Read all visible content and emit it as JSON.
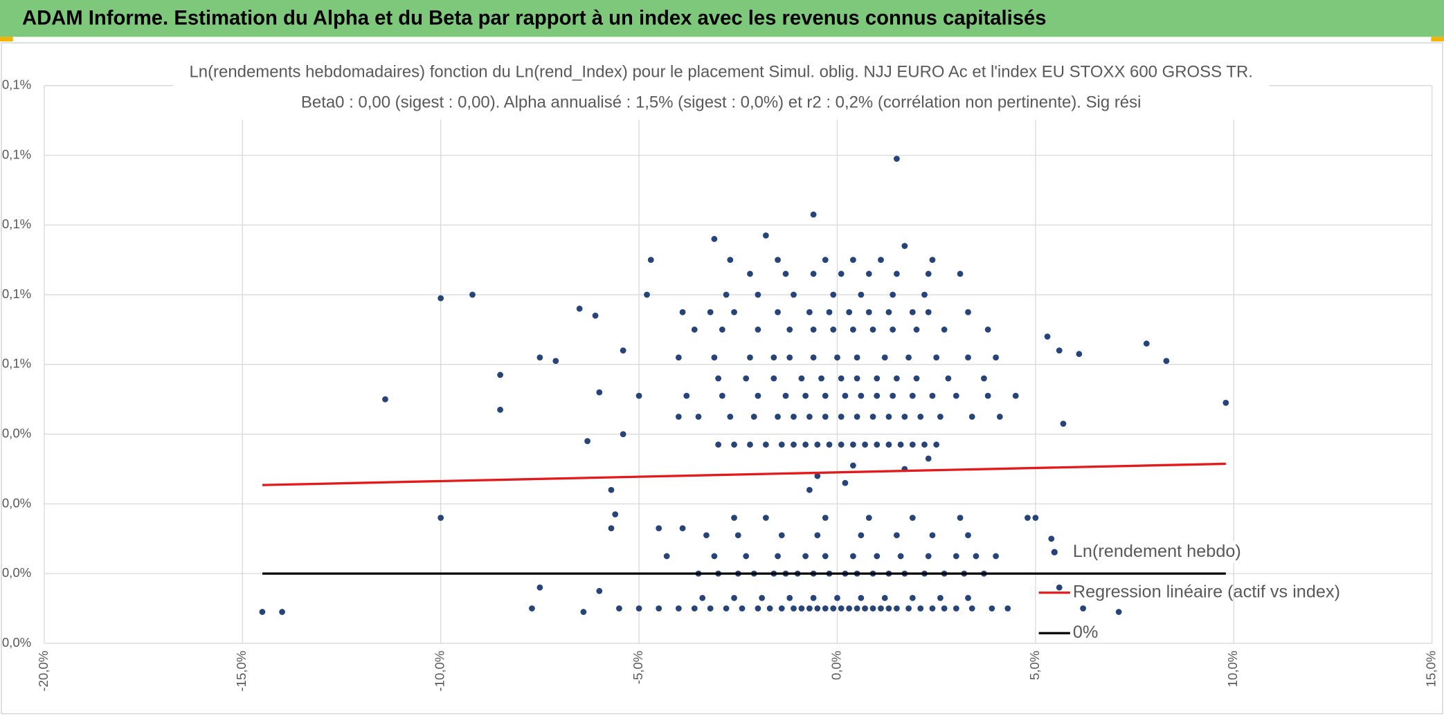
{
  "header": {
    "title": "ADAM Informe. Estimation du Alpha et du Beta par rapport à un index avec les revenus connus capitalisés"
  },
  "chart_data": {
    "type": "scatter",
    "title": "Ln(rendements hebdomadaires) fonction du Ln(rend_Index) pour le placement Simul. oblig. NJJ EURO Ac et l'index EU STOXX 600 GROSS TR.",
    "subtitle": "Beta0 : 0,00 (sigest : 0,00). Alpha annualisé : 1,5% (sigest : 0,0%) et r2 : 0,2% (corrélation non pertinente). Sig rési",
    "grid": true,
    "xlim": [
      -20,
      15
    ],
    "xticks": [
      {
        "value": -20,
        "label": "-20,0%"
      },
      {
        "value": -15,
        "label": "-15,0%"
      },
      {
        "value": -10,
        "label": "-10,0%"
      },
      {
        "value": -5,
        "label": "-5,0%"
      },
      {
        "value": 0,
        "label": "0,0%"
      },
      {
        "value": 5,
        "label": "5,0%"
      },
      {
        "value": 10,
        "label": "10,0%"
      },
      {
        "value": 15,
        "label": "15,0%"
      }
    ],
    "ylim": [
      -0.02,
      0.14
    ],
    "yticks": [
      {
        "value": -0.02,
        "label": "0,0%"
      },
      {
        "value": 0,
        "label": "0,0%"
      },
      {
        "value": 0.02,
        "label": "0,0%"
      },
      {
        "value": 0.04,
        "label": "0,0%"
      },
      {
        "value": 0.06,
        "label": "0,1%"
      },
      {
        "value": 0.08,
        "label": "0,1%"
      },
      {
        "value": 0.1,
        "label": "0,1%"
      },
      {
        "value": 0.12,
        "label": "0,1%"
      },
      {
        "value": 0.14,
        "label": "0,1%"
      }
    ],
    "series": [
      {
        "name": "Ln(rendement hebdo)",
        "type": "scatter",
        "color": "#264478",
        "x": [
          -4.5,
          -4.0,
          -3.6,
          -3.2,
          -2.8,
          -2.4,
          -2.0,
          -1.7,
          -1.4,
          -1.1,
          -0.9,
          -0.7,
          -0.5,
          -0.3,
          -0.1,
          0.1,
          0.3,
          0.5,
          0.7,
          0.9,
          1.1,
          1.3,
          1.5,
          1.8,
          2.1,
          2.4,
          2.7,
          3.0,
          3.4,
          3.9,
          -5.0,
          -5.5,
          4.3,
          -3.4,
          -2.6,
          -1.9,
          -1.2,
          -0.6,
          0.0,
          0.6,
          1.2,
          1.9,
          2.6,
          3.3,
          -3.5,
          -3.0,
          -2.5,
          -2.1,
          -1.6,
          -1.3,
          -1.0,
          -0.6,
          -0.2,
          0.2,
          0.5,
          0.9,
          1.3,
          1.7,
          2.2,
          2.7,
          3.2,
          3.7,
          -4.3,
          -3.1,
          -2.3,
          -1.5,
          -0.8,
          -0.3,
          0.4,
          1.0,
          1.6,
          2.3,
          3.0,
          3.5,
          4.0,
          -3.3,
          -2.5,
          -1.4,
          -0.5,
          0.6,
          1.5,
          2.4,
          3.3,
          -2.6,
          -1.8,
          -0.3,
          0.8,
          1.9,
          3.1,
          4.8,
          -0.7,
          0.2,
          -0.5,
          0.4,
          1.7,
          2.3,
          -3.0,
          -2.6,
          -2.2,
          -1.8,
          -1.4,
          -1.1,
          -0.8,
          -0.5,
          -0.2,
          0.1,
          0.4,
          0.7,
          1.0,
          1.3,
          1.6,
          1.9,
          2.2,
          2.5,
          -4.0,
          -3.5,
          -2.7,
          -2.1,
          -1.5,
          -1.1,
          -0.7,
          -0.3,
          0.1,
          0.5,
          0.9,
          1.3,
          1.7,
          2.1,
          2.6,
          3.4,
          4.1,
          -3.8,
          -2.9,
          -2.0,
          -1.3,
          -0.8,
          -0.3,
          0.2,
          0.6,
          1.0,
          1.4,
          1.9,
          2.4,
          3.0,
          3.8,
          4.5,
          -3.0,
          -2.3,
          -1.6,
          -0.9,
          -0.4,
          0.1,
          0.5,
          1.0,
          1.5,
          2.0,
          2.8,
          3.7,
          -4.0,
          -3.1,
          -2.2,
          -1.6,
          -1.2,
          -0.6,
          0.0,
          0.5,
          1.2,
          1.8,
          2.5,
          3.3,
          4.0,
          -3.6,
          -2.9,
          -2.0,
          -1.2,
          -0.6,
          -0.1,
          0.4,
          0.9,
          1.4,
          2.0,
          2.7,
          3.8,
          -3.9,
          -3.2,
          -2.6,
          -1.5,
          -0.7,
          -0.2,
          0.3,
          0.8,
          1.3,
          1.9,
          2.3,
          3.3,
          -2.8,
          -2.0,
          -1.1,
          -0.1,
          0.6,
          1.4,
          2.2,
          -2.2,
          -1.3,
          -0.6,
          0.1,
          0.8,
          1.5,
          2.3,
          3.1,
          -2.7,
          -1.5,
          -0.3,
          0.4,
          1.1,
          2.4,
          1.5,
          -0.6,
          -1.8,
          -3.1,
          1.7,
          -10.0,
          -9.2,
          -11.4,
          -14.5,
          -14.0,
          9.8,
          8.3,
          7.8,
          6.1,
          5.7,
          5.3,
          -8.5,
          -8.5,
          -7.5,
          -7.1,
          -7.5,
          -7.7,
          -6.5,
          -6.1,
          -6.3,
          -5.4,
          -5.4,
          -4.7,
          -4.8,
          -10.0,
          -5.7,
          -5.6,
          -5.7,
          -6.4,
          -6.0,
          -5.0,
          -3.9,
          -4.5,
          6.2,
          7.1,
          5.4,
          5.0,
          5.6,
          -6.0,
          5.6
        ],
        "values": [
          -0.01,
          -0.01,
          -0.01,
          -0.01,
          -0.01,
          -0.01,
          -0.01,
          -0.01,
          -0.01,
          -0.01,
          -0.01,
          -0.01,
          -0.01,
          -0.01,
          -0.01,
          -0.01,
          -0.01,
          -0.01,
          -0.01,
          -0.01,
          -0.01,
          -0.01,
          -0.01,
          -0.01,
          -0.01,
          -0.01,
          -0.01,
          -0.01,
          -0.01,
          -0.01,
          -0.01,
          -0.01,
          -0.01,
          -0.007,
          -0.007,
          -0.007,
          -0.007,
          -0.007,
          -0.007,
          -0.007,
          -0.007,
          -0.007,
          -0.007,
          -0.007,
          0.0,
          0.0,
          0.0,
          0.0,
          0.0,
          0.0,
          0.0,
          0.0,
          0.0,
          0.0,
          0.0,
          0.0,
          0.0,
          0.0,
          0.0,
          0.0,
          0.0,
          0.0,
          0.005,
          0.005,
          0.005,
          0.005,
          0.005,
          0.005,
          0.005,
          0.005,
          0.005,
          0.005,
          0.005,
          0.005,
          0.005,
          0.011,
          0.011,
          0.011,
          0.011,
          0.011,
          0.011,
          0.011,
          0.011,
          0.016,
          0.016,
          0.016,
          0.016,
          0.016,
          0.016,
          0.016,
          0.024,
          0.026,
          0.028,
          0.031,
          0.03,
          0.033,
          0.037,
          0.037,
          0.037,
          0.037,
          0.037,
          0.037,
          0.037,
          0.037,
          0.037,
          0.037,
          0.037,
          0.037,
          0.037,
          0.037,
          0.037,
          0.037,
          0.037,
          0.037,
          0.045,
          0.045,
          0.045,
          0.045,
          0.045,
          0.045,
          0.045,
          0.045,
          0.045,
          0.045,
          0.045,
          0.045,
          0.045,
          0.045,
          0.045,
          0.045,
          0.045,
          0.051,
          0.051,
          0.051,
          0.051,
          0.051,
          0.051,
          0.051,
          0.051,
          0.051,
          0.051,
          0.051,
          0.051,
          0.051,
          0.051,
          0.051,
          0.056,
          0.056,
          0.056,
          0.056,
          0.056,
          0.056,
          0.056,
          0.056,
          0.056,
          0.056,
          0.056,
          0.056,
          0.062,
          0.062,
          0.062,
          0.062,
          0.062,
          0.062,
          0.062,
          0.062,
          0.062,
          0.062,
          0.062,
          0.062,
          0.062,
          0.07,
          0.07,
          0.07,
          0.07,
          0.07,
          0.07,
          0.07,
          0.07,
          0.07,
          0.07,
          0.07,
          0.07,
          0.075,
          0.075,
          0.075,
          0.075,
          0.075,
          0.075,
          0.075,
          0.075,
          0.075,
          0.075,
          0.075,
          0.075,
          0.08,
          0.08,
          0.08,
          0.08,
          0.08,
          0.08,
          0.08,
          0.086,
          0.086,
          0.086,
          0.086,
          0.086,
          0.086,
          0.086,
          0.086,
          0.09,
          0.09,
          0.09,
          0.09,
          0.09,
          0.09,
          0.119,
          0.103,
          0.097,
          0.096,
          0.094,
          0.079,
          0.08,
          0.05,
          -0.011,
          -0.011,
          0.049,
          0.061,
          0.066,
          0.063,
          0.043,
          0.068,
          0.057,
          0.047,
          0.062,
          0.061,
          -0.004,
          -0.01,
          0.076,
          0.074,
          0.038,
          0.04,
          0.064,
          0.09,
          0.08,
          0.016,
          0.024,
          0.017,
          0.013,
          -0.011,
          0.052,
          0.051,
          0.013,
          0.013,
          -0.01,
          -0.011,
          0.01,
          0.016,
          -0.004,
          -0.005,
          0.064
        ]
      },
      {
        "name": "Regression linéaire (actif vs index)",
        "type": "line",
        "color": "#e31a1c",
        "x": [
          -14.5,
          9.8
        ],
        "values": [
          0.0254,
          0.0315
        ]
      },
      {
        "name": "0%",
        "type": "line",
        "color": "#000000",
        "x": [
          -14.5,
          9.8
        ],
        "values": [
          0,
          0
        ]
      }
    ]
  }
}
